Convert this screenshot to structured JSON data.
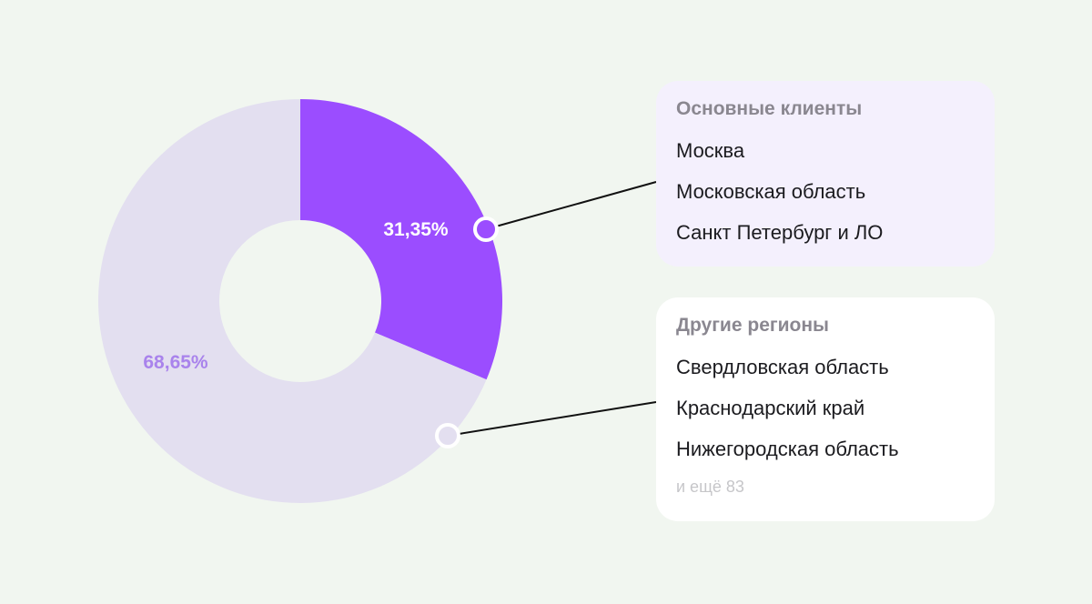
{
  "chart_data": {
    "type": "pie",
    "segments": [
      {
        "label": "31,35%",
        "value": 31.35,
        "color": "#9b4dff",
        "label_color": "#ffffff"
      },
      {
        "label": "68,65%",
        "value": 68.65,
        "color": "#e3dff0",
        "label_color": "#a983ec"
      }
    ]
  },
  "main_clients": {
    "title": "Основные клиенты",
    "items": [
      "Москва",
      "Московская область",
      "Санкт Петербург и ЛО"
    ]
  },
  "other_regions": {
    "title": "Другие регионы",
    "items": [
      "Свердловская область",
      "Краснодарский край",
      "Нижегородская область"
    ],
    "more": "и ещё 83"
  }
}
